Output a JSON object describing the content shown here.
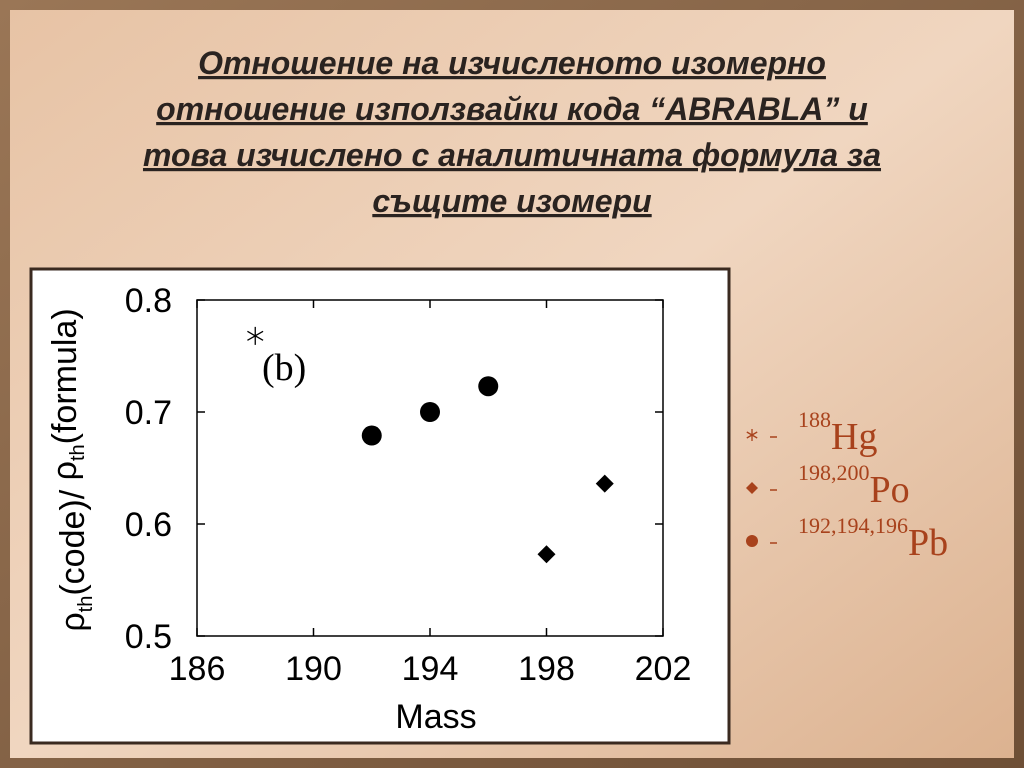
{
  "title_lines": [
    "Отношение на изчисленото изомерно",
    "отношение използвайки кода “ABRABLA” и",
    "това изчислено с аналитичната формула за",
    "същите изомери"
  ],
  "chart_data": {
    "type": "scatter",
    "annotation": "(b)",
    "x_label": "Mass",
    "y_label_parts": [
      "ρ",
      "th",
      "(code)/ ",
      "ρ",
      "th",
      "(formula)"
    ],
    "xlim": [
      186,
      202
    ],
    "xticks": [
      186,
      190,
      194,
      198,
      202
    ],
    "ylim": [
      0.5,
      0.8
    ],
    "yticks": [
      0.5,
      0.6,
      0.7,
      0.8
    ],
    "legend_color": "#a8421c",
    "series": [
      {
        "name": "Hg",
        "mass_numbers": "188",
        "marker": "asterisk",
        "color": "#000000",
        "x": [
          188
        ],
        "values": [
          0.768
        ]
      },
      {
        "name": "Po",
        "mass_numbers": "198,200",
        "marker": "diamond",
        "color": "#000000",
        "x": [
          198,
          200
        ],
        "values": [
          0.573,
          0.636
        ]
      },
      {
        "name": "Pb",
        "mass_numbers": "192,194,196",
        "marker": "circle",
        "color": "#000000",
        "x": [
          192,
          194,
          196
        ],
        "values": [
          0.679,
          0.7,
          0.723
        ]
      }
    ]
  }
}
